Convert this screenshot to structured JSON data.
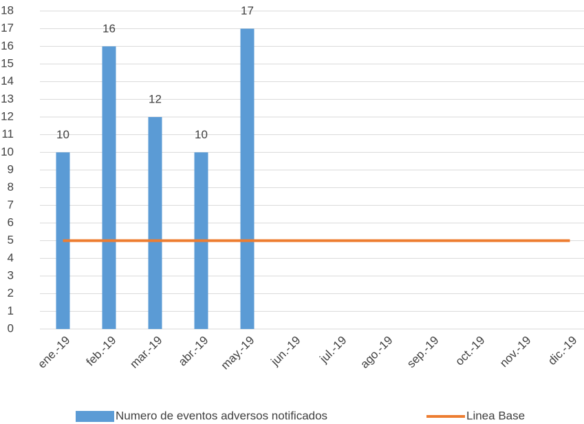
{
  "chart_data": {
    "type": "bar-line",
    "categories": [
      "ene.-19",
      "feb.-19",
      "mar.-19",
      "abr.-19",
      "may.-19",
      "jun.-19",
      "jul.-19",
      "ago.-19",
      "sep.-19",
      "oct.-19",
      "nov.-19",
      "dic.-19"
    ],
    "series": [
      {
        "name": "Numero de eventos adversos notificados",
        "type": "bar",
        "color": "#5b9bd5",
        "values": [
          10,
          16,
          12,
          10,
          17,
          null,
          null,
          null,
          null,
          null,
          null,
          null
        ]
      },
      {
        "name": "Linea Base",
        "type": "line",
        "color": "#ed7d31",
        "values": [
          5,
          5,
          5,
          5,
          5,
          5,
          5,
          5,
          5,
          5,
          5,
          5
        ]
      }
    ],
    "ylim": [
      0,
      18
    ],
    "yticks": [
      0,
      1,
      2,
      3,
      4,
      5,
      6,
      7,
      8,
      9,
      10,
      11,
      12,
      13,
      14,
      15,
      16,
      17,
      18
    ],
    "grid": true,
    "legend": "bottom"
  }
}
